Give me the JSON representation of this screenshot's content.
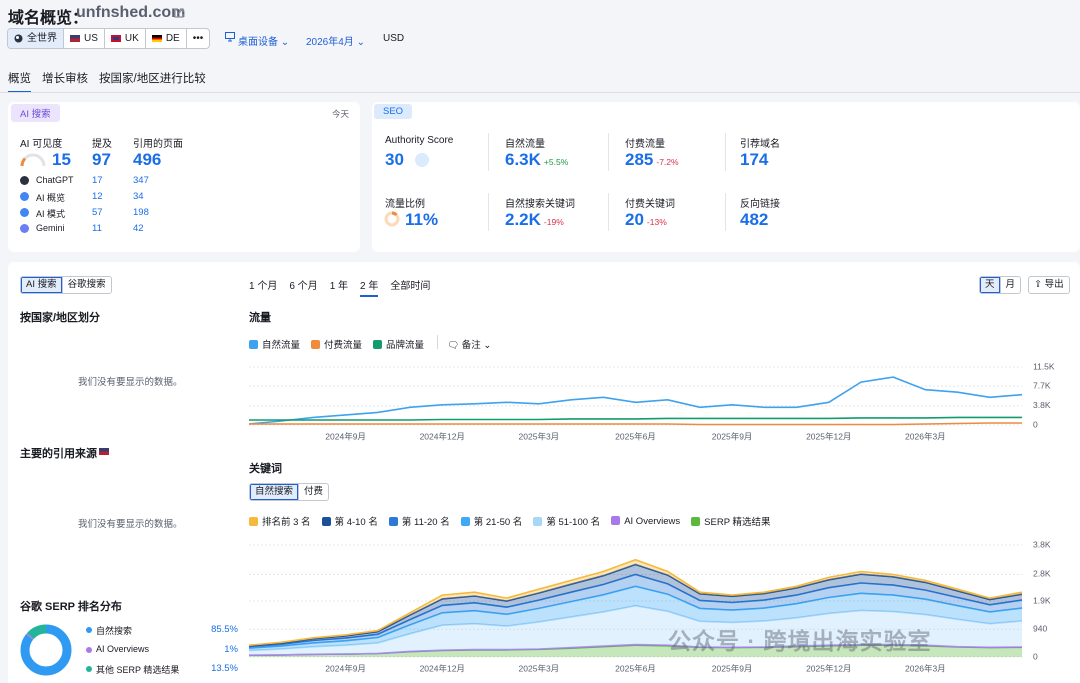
{
  "header": {
    "title": "域名概览：",
    "domain": "unfnshed.com"
  },
  "filters": {
    "regions": [
      "全世界",
      "US",
      "UK",
      "DE",
      "•••"
    ],
    "device": "桌面设备",
    "date": "2026年4月",
    "currency": "USD"
  },
  "tabs": [
    "概览",
    "增长审核",
    "按国家/地区进行比较"
  ],
  "ai_card": {
    "tag": "AI 搜索",
    "date": "今天",
    "metrics": [
      {
        "label": "AI 可见度",
        "value": 15
      },
      {
        "label": "提及",
        "value": 97
      },
      {
        "label": "引用的页面",
        "value": 496
      }
    ],
    "rows": [
      {
        "name": "ChatGPT",
        "mentions": 17,
        "pages": 347
      },
      {
        "name": "AI 概览",
        "mentions": 12,
        "pages": 34
      },
      {
        "name": "AI 模式",
        "mentions": 57,
        "pages": 198
      },
      {
        "name": "Gemini",
        "mentions": 11,
        "pages": 42
      }
    ]
  },
  "seo_card": {
    "tag": "SEO",
    "metrics": [
      {
        "label": "Authority Score",
        "value": 30
      },
      {
        "label": "自然流量",
        "value": "6.3K",
        "change": "+5.5%"
      },
      {
        "label": "付费流量",
        "value": 285,
        "change": "-7.2%"
      },
      {
        "label": "引荐域名",
        "value": 174
      },
      {
        "label": "流量比例",
        "value": "11%"
      },
      {
        "label": "自然搜索关键词",
        "value": "2.2K",
        "change": "-19%"
      },
      {
        "label": "付费关键词",
        "value": 20,
        "change": "-13%"
      },
      {
        "label": "反向链接",
        "value": 482
      }
    ]
  },
  "left_panel": {
    "toggle": [
      "AI 搜索",
      "谷歌搜索"
    ],
    "by_country": "按国家/地区划分",
    "no_data_1": "我们没有要显示的数据。",
    "top_sources": "主要的引用来源",
    "no_data_2": "我们没有要显示的数据。",
    "serp_title": "谷歌 SERP 排名分布"
  },
  "serp_chart": {
    "type": "pie",
    "categories": [
      "自然搜索",
      "AI Overviews",
      "其他 SERP 精选结果"
    ],
    "values": [
      85.5,
      1,
      13.5
    ],
    "value_labels": [
      "85.5%",
      "1%",
      "13.5%"
    ],
    "colors": [
      "#2e9af2",
      "#a779e9",
      "#23b59b"
    ]
  },
  "ranges": [
    "1 个月",
    "6 个月",
    "1 年",
    "2 年",
    "全部时间"
  ],
  "buttons": [
    "天",
    "月",
    "导出"
  ],
  "notes": "备注",
  "keyword_toggle": [
    "自然搜索",
    "付费"
  ],
  "watermark": "公众号 · 跨境出海实验室",
  "chart_data": [
    {
      "type": "line",
      "title": "流量",
      "categories": [
        null,
        null,
        null,
        "2024年9月",
        null,
        null,
        "2024年12月",
        null,
        null,
        "2025年3月",
        null,
        null,
        "2025年6月",
        null,
        null,
        "2025年9月",
        null,
        null,
        "2025年12月",
        null,
        null,
        "2026年3月",
        null,
        null,
        null
      ],
      "series": [
        {
          "name": "自然流量",
          "color": "#3fa2ee",
          "values": [
            200,
            800,
            1500,
            2000,
            2500,
            3500,
            4000,
            4200,
            4500,
            4200,
            5000,
            5500,
            4500,
            5000,
            3500,
            4000,
            3500,
            3500,
            4500,
            8500,
            9500,
            7000,
            6500,
            5500,
            6000
          ]
        },
        {
          "name": "付费流量",
          "color": "#f08a3c",
          "values": [
            200,
            200,
            200,
            200,
            200,
            200,
            200,
            200,
            200,
            200,
            200,
            200,
            200,
            200,
            100,
            100,
            100,
            100,
            100,
            100,
            100,
            200,
            300,
            400,
            400
          ]
        },
        {
          "name": "品牌流量",
          "color": "#129b6f",
          "values": [
            1000,
            1000,
            1000,
            1000,
            1000,
            1000,
            1100,
            1100,
            1100,
            1100,
            1200,
            1200,
            1200,
            1300,
            1300,
            1300,
            1300,
            1300,
            1300,
            1400,
            1400,
            1400,
            1500,
            1500,
            1500
          ]
        }
      ],
      "ylim": [
        0,
        11500
      ],
      "yticks": [
        0,
        {
          "value": 3800,
          "label": "3.8K"
        },
        {
          "value": 7700,
          "label": "7.7K"
        },
        {
          "value": 11500,
          "label": "11.5K"
        }
      ],
      "grid": true
    },
    {
      "type": "stacked_area",
      "title": "关键词",
      "categories": [
        null,
        null,
        null,
        "2024年9月",
        null,
        null,
        "2024年12月",
        null,
        null,
        "2025年3月",
        null,
        null,
        "2025年6月",
        null,
        null,
        "2025年9月",
        null,
        null,
        "2025年12月",
        null,
        null,
        "2026年3月",
        null,
        null,
        null
      ],
      "series": [
        {
          "name": "排名前 3 名",
          "color": "#f6b93b",
          "values": [
            15,
            20,
            30,
            35,
            40,
            80,
            130,
            130,
            100,
            130,
            130,
            140,
            160,
            120,
            60,
            40,
            50,
            60,
            80,
            90,
            80,
            70,
            60,
            50,
            70
          ]
        },
        {
          "name": "第 4-10 名",
          "color": "#1b4f9c",
          "values": [
            35,
            50,
            60,
            75,
            90,
            150,
            220,
            230,
            210,
            240,
            270,
            300,
            340,
            300,
            220,
            210,
            220,
            240,
            270,
            300,
            280,
            260,
            220,
            180,
            200
          ]
        },
        {
          "name": "第 11-20 名",
          "color": "#2a7ad6",
          "values": [
            50,
            60,
            80,
            90,
            110,
            180,
            250,
            270,
            240,
            280,
            320,
            350,
            400,
            350,
            270,
            260,
            270,
            290,
            330,
            350,
            340,
            310,
            280,
            240,
            270
          ]
        },
        {
          "name": "第 21-50 名",
          "color": "#3fa9f5",
          "values": [
            80,
            100,
            130,
            150,
            180,
            300,
            420,
            440,
            400,
            460,
            520,
            580,
            660,
            580,
            440,
            420,
            440,
            480,
            540,
            580,
            560,
            520,
            460,
            400,
            440
          ]
        },
        {
          "name": "第 51-100 名",
          "color": "#a8d6f8",
          "values": [
            160,
            200,
            260,
            300,
            360,
            600,
            850,
            880,
            800,
            920,
            1040,
            1160,
            1320,
            1150,
            870,
            840,
            880,
            960,
            1080,
            1160,
            1120,
            1040,
            930,
            800,
            880
          ]
        },
        {
          "name": "AI Overviews",
          "color": "#a779e9",
          "values": [
            0,
            0,
            0,
            0,
            0,
            10,
            10,
            10,
            10,
            10,
            20,
            20,
            20,
            20,
            10,
            10,
            10,
            20,
            20,
            20,
            20,
            20,
            10,
            10,
            10
          ]
        },
        {
          "name": "SERP 精选结果",
          "color": "#5db83e",
          "values": [
            60,
            70,
            90,
            100,
            120,
            180,
            220,
            240,
            240,
            260,
            300,
            350,
            400,
            380,
            330,
            320,
            330,
            350,
            380,
            400,
            400,
            380,
            340,
            320,
            330
          ]
        }
      ],
      "ylim": [
        0,
        3800
      ],
      "yticks": [
        0,
        940,
        {
          "value": 1900,
          "label": "1.9K"
        },
        {
          "value": 2800,
          "label": "2.8K"
        },
        {
          "value": 3800,
          "label": "3.8K"
        }
      ],
      "grid": true
    }
  ]
}
